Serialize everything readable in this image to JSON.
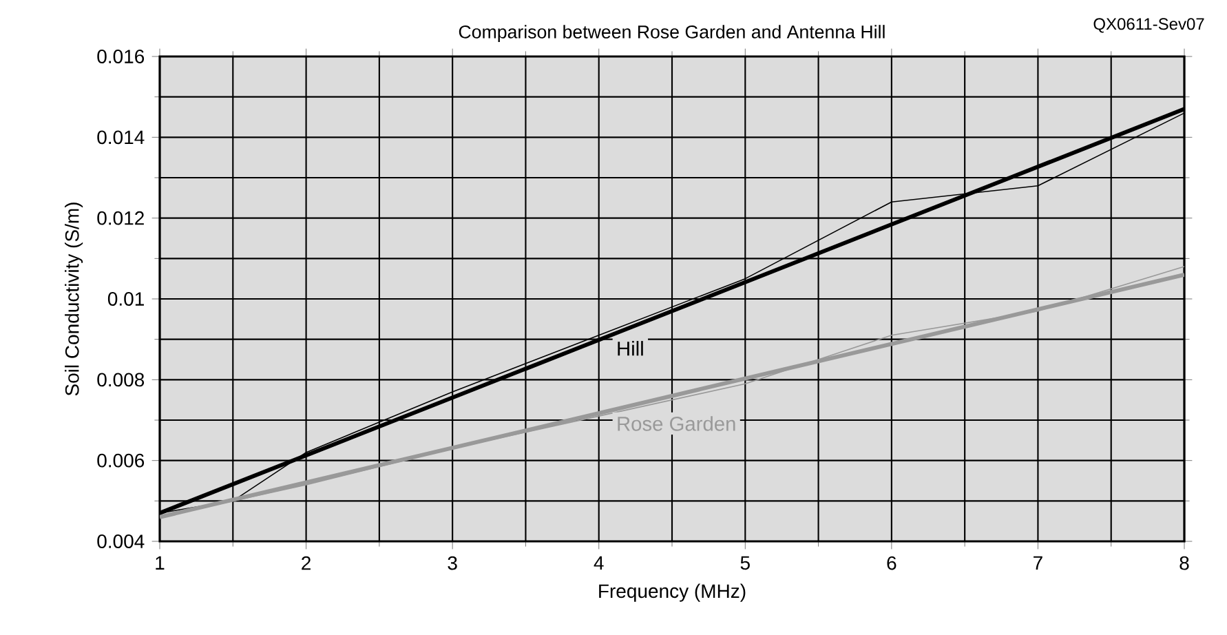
{
  "chart_data": {
    "type": "line",
    "title": "Comparison between Rose Garden and Antenna Hill",
    "xlabel": "Frequency (MHz)",
    "ylabel": "Soil Conductivity (S/m)",
    "annotations": [
      "QX0611-Sev07"
    ],
    "xlim": [
      1,
      8
    ],
    "ylim": [
      0.004,
      0.016
    ],
    "xticks": [
      1,
      2,
      3,
      4,
      5,
      6,
      7,
      8
    ],
    "yticks": [
      0.004,
      0.006,
      0.008,
      0.01,
      0.012,
      0.014,
      0.016
    ],
    "grid": true,
    "marker": "none",
    "line_style": "solid",
    "series": [
      {
        "color": "#000000",
        "x": [
          1,
          1.5,
          2,
          3,
          4,
          5,
          6,
          6.5,
          7,
          8
        ],
        "values": [
          0.0047,
          0.005,
          0.0062,
          0.0077,
          0.0091,
          0.0105,
          0.0124,
          0.0126,
          0.0128,
          0.0146
        ]
      },
      {
        "color": "#999999",
        "x": [
          1,
          2,
          3,
          4,
          5,
          6,
          7,
          8
        ],
        "values": [
          0.0046,
          0.0054,
          0.0063,
          0.0071,
          0.0079,
          0.0091,
          0.0097,
          0.0108
        ]
      },
      {
        "name": "Hill",
        "color": "#000000",
        "x": [
          1,
          8
        ],
        "values": [
          0.0047,
          0.0147
        ]
      },
      {
        "name": "Rose Garden",
        "color": "#999999",
        "x": [
          1,
          8
        ],
        "values": [
          0.0046,
          0.0106
        ]
      }
    ]
  }
}
